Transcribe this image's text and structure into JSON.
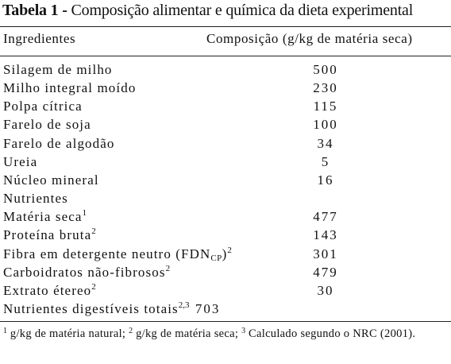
{
  "table": {
    "title_prefix": "Tabela 1 -",
    "title_text": "Composição alimentar e química da dieta experimental",
    "header_ingredients": "Ingredientes",
    "header_composition": "Composição (g/kg de matéria seca)",
    "rows": [
      {
        "label": "Silagem de milho",
        "value": "500"
      },
      {
        "label": "Milho integral moído",
        "value": "230"
      },
      {
        "label": "Polpa cítrica",
        "value": "115"
      },
      {
        "label": "Farelo de soja",
        "value": "100"
      },
      {
        "label": "Farelo de algodão",
        "value": "34"
      },
      {
        "label": "Ureia",
        "value": "5"
      },
      {
        "label": "Núcleo mineral",
        "value": "16"
      }
    ],
    "nutrients_heading": "Nutrientes",
    "nutrients": [
      {
        "label": "Matéria seca",
        "sup": "1",
        "value": "477"
      },
      {
        "label": "Proteína bruta",
        "sup": "2",
        "value": "143"
      },
      {
        "label": "Fibra em detergente neutro (FDN",
        "sub": "CP",
        "label_end": ")",
        "sup": "2",
        "value": "301"
      },
      {
        "label": "Carboidratos não-fibrosos",
        "sup": "2",
        "value": "479"
      },
      {
        "label": "Extrato étereo",
        "sup": "2",
        "value": "30"
      },
      {
        "label": "Nutrientes digestíveis totais",
        "sup": "2,3",
        "value": "703"
      }
    ],
    "footnote": {
      "n1": "1",
      "t1": " g/kg de matéria natural; ",
      "n2": "2",
      "t2": " g/kg de matéria seca; ",
      "n3": "3",
      "t3": " Calculado segundo o NRC (2001)."
    }
  }
}
